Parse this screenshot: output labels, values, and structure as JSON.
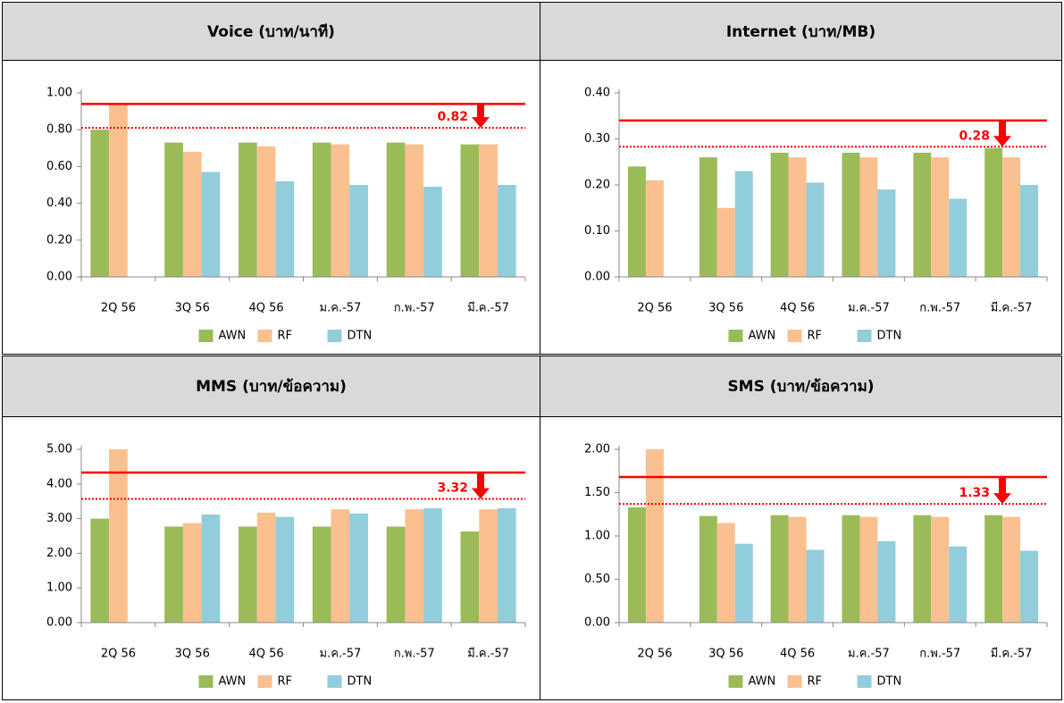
{
  "chart_data": [
    {
      "type": "bar",
      "title": "Voice (บาท/นาที)",
      "categories": [
        "2Q 56",
        "3Q 56",
        "4Q 56",
        "ม.ค.-57",
        "ก.พ.-57",
        "มี.ค.-57"
      ],
      "series": [
        {
          "name": "AWN",
          "color": "#9bbb59",
          "values": [
            0.8,
            0.73,
            0.73,
            0.73,
            0.73,
            0.72
          ]
        },
        {
          "name": "RF",
          "color": "#fac090",
          "values": [
            0.94,
            0.68,
            0.71,
            0.72,
            0.72,
            0.72
          ]
        },
        {
          "name": "DTN",
          "color": "#92cddc",
          "values": [
            null,
            0.57,
            0.52,
            0.5,
            0.49,
            0.5
          ]
        }
      ],
      "ylim": [
        0,
        1.0
      ],
      "yticks": [
        {
          "value": 0,
          "label": "0.00"
        },
        {
          "value": 0.2,
          "label": "0.20"
        },
        {
          "value": 0.4,
          "label": "0.40"
        },
        {
          "value": 0.6,
          "label": "0.60"
        },
        {
          "value": 0.8,
          "label": "0.80"
        },
        {
          "value": 1.0,
          "label": "1.00"
        }
      ],
      "lines": [
        {
          "value": 0.94,
          "dashed": false,
          "color": "#ff0000"
        },
        {
          "value": 0.81,
          "dashed": true,
          "color": "#ff0000"
        }
      ],
      "annotation": "0.82"
    },
    {
      "type": "bar",
      "title": "Internet (บาท/MB)",
      "categories": [
        "2Q 56",
        "3Q 56",
        "4Q 56",
        "ม.ค.-57",
        "ก.พ.-57",
        "มี.ค.-57"
      ],
      "series": [
        {
          "name": "AWN",
          "color": "#9bbb59",
          "values": [
            0.24,
            0.26,
            0.27,
            0.27,
            0.27,
            0.28
          ]
        },
        {
          "name": "RF",
          "color": "#fac090",
          "values": [
            0.21,
            0.15,
            0.26,
            0.26,
            0.26,
            0.26
          ]
        },
        {
          "name": "DTN",
          "color": "#92cddc",
          "values": [
            null,
            0.23,
            0.205,
            0.19,
            0.17,
            0.2
          ]
        }
      ],
      "ylim": [
        0,
        0.4
      ],
      "yticks": [
        {
          "value": 0,
          "label": "0.00"
        },
        {
          "value": 0.1,
          "label": "0.10"
        },
        {
          "value": 0.2,
          "label": "0.20"
        },
        {
          "value": 0.3,
          "label": "0.30"
        },
        {
          "value": 0.4,
          "label": "0.40"
        }
      ],
      "lines": [
        {
          "value": 0.34,
          "dashed": false,
          "color": "#ff0000"
        },
        {
          "value": 0.283,
          "dashed": true,
          "color": "#ff0000"
        }
      ],
      "annotation": "0.28"
    },
    {
      "type": "bar",
      "title": "MMS (บาท/ข้อความ)",
      "categories": [
        "2Q 56",
        "3Q 56",
        "4Q 56",
        "ม.ค.-57",
        "ก.พ.-57",
        "มี.ค.-57"
      ],
      "series": [
        {
          "name": "AWN",
          "color": "#9bbb59",
          "values": [
            3.0,
            2.77,
            2.77,
            2.77,
            2.77,
            2.63
          ]
        },
        {
          "name": "RF",
          "color": "#fac090",
          "values": [
            5.0,
            2.87,
            3.17,
            3.27,
            3.27,
            3.27
          ]
        },
        {
          "name": "DTN",
          "color": "#92cddc",
          "values": [
            null,
            3.12,
            3.05,
            3.15,
            3.3,
            3.3
          ]
        }
      ],
      "ylim": [
        0,
        5.0
      ],
      "yticks": [
        {
          "value": 0,
          "label": "0.00"
        },
        {
          "value": 1,
          "label": "1.00"
        },
        {
          "value": 2,
          "label": "2.00"
        },
        {
          "value": 3,
          "label": "3.00"
        },
        {
          "value": 4,
          "label": "4.00"
        },
        {
          "value": 5,
          "label": "5.00"
        }
      ],
      "lines": [
        {
          "value": 4.33,
          "dashed": false,
          "color": "#ff0000"
        },
        {
          "value": 3.57,
          "dashed": true,
          "color": "#ff0000"
        }
      ],
      "annotation": "3.32"
    },
    {
      "type": "bar",
      "title": "SMS (บาท/ข้อความ)",
      "categories": [
        "2Q 56",
        "3Q 56",
        "4Q 56",
        "ม.ค.-57",
        "ก.พ.-57",
        "มี.ค.-57"
      ],
      "series": [
        {
          "name": "AWN",
          "color": "#9bbb59",
          "values": [
            1.33,
            1.23,
            1.24,
            1.24,
            1.24,
            1.24
          ]
        },
        {
          "name": "RF",
          "color": "#fac090",
          "values": [
            2.0,
            1.15,
            1.22,
            1.22,
            1.22,
            1.22
          ]
        },
        {
          "name": "DTN",
          "color": "#92cddc",
          "values": [
            null,
            0.91,
            0.84,
            0.94,
            0.88,
            0.83
          ]
        }
      ],
      "ylim": [
        0,
        2.0
      ],
      "yticks": [
        {
          "value": 0,
          "label": "0.00"
        },
        {
          "value": 0.5,
          "label": "0.50"
        },
        {
          "value": 1.0,
          "label": "1.00"
        },
        {
          "value": 1.5,
          "label": "1.50"
        },
        {
          "value": 2.0,
          "label": "2.00"
        }
      ],
      "lines": [
        {
          "value": 1.68,
          "dashed": false,
          "color": "#ff0000"
        },
        {
          "value": 1.37,
          "dashed": true,
          "color": "#ff0000"
        }
      ],
      "annotation": "1.33"
    }
  ]
}
